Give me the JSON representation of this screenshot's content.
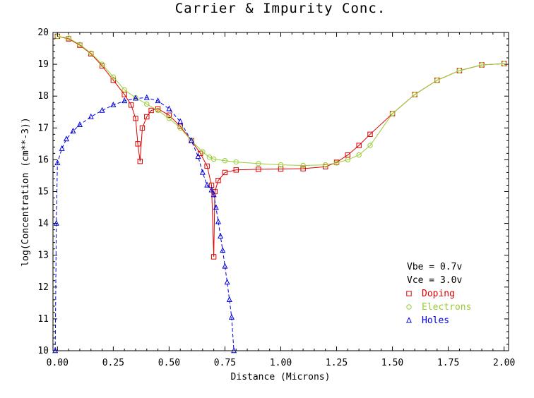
{
  "chart_data": {
    "type": "line",
    "title": "Carrier & Impurity Conc.",
    "xlabel": "Distance (Microns)",
    "ylabel": "log(Concentration (cm**-3))",
    "xlim": [
      -0.02,
      2.02
    ],
    "ylim": [
      10,
      20
    ],
    "x_ticks": [
      "0.00",
      "0.25",
      "0.50",
      "0.75",
      "1.00",
      "1.25",
      "1.50",
      "1.75",
      "2.00"
    ],
    "y_ticks": [
      "10",
      "11",
      "12",
      "13",
      "14",
      "15",
      "16",
      "17",
      "18",
      "19",
      "20"
    ],
    "grid": false,
    "annotations": [
      "Vbe = 0.7v",
      "Vce = 3.0v"
    ],
    "legend_position": "bottom-right",
    "series": [
      {
        "name": "Doping",
        "color": "#dd0000",
        "marker": "square",
        "line": "solid",
        "x": [
          0.0,
          0.05,
          0.1,
          0.15,
          0.2,
          0.25,
          0.3,
          0.33,
          0.35,
          0.36,
          0.37,
          0.38,
          0.4,
          0.42,
          0.45,
          0.5,
          0.55,
          0.6,
          0.64,
          0.67,
          0.69,
          0.7,
          0.705,
          0.72,
          0.75,
          0.8,
          0.9,
          1.0,
          1.1,
          1.2,
          1.25,
          1.3,
          1.35,
          1.4,
          1.5,
          1.6,
          1.7,
          1.8,
          1.9,
          2.0
        ],
        "y": [
          19.88,
          19.8,
          19.6,
          19.33,
          18.95,
          18.5,
          18.05,
          17.72,
          17.3,
          16.5,
          15.95,
          17.0,
          17.35,
          17.55,
          17.6,
          17.4,
          17.05,
          16.6,
          16.2,
          15.8,
          15.2,
          12.95,
          15.0,
          15.35,
          15.6,
          15.68,
          15.7,
          15.71,
          15.72,
          15.78,
          15.92,
          16.15,
          16.45,
          16.8,
          17.45,
          18.05,
          18.5,
          18.8,
          18.98,
          19.02
        ]
      },
      {
        "name": "Electrons",
        "color": "#99cc33",
        "marker": "circle",
        "line": "solid",
        "x": [
          0.0,
          0.05,
          0.1,
          0.15,
          0.2,
          0.25,
          0.3,
          0.35,
          0.4,
          0.45,
          0.5,
          0.55,
          0.6,
          0.65,
          0.68,
          0.7,
          0.75,
          0.8,
          0.9,
          1.0,
          1.1,
          1.2,
          1.25,
          1.3,
          1.35,
          1.4,
          1.5,
          1.6,
          1.7,
          1.8,
          1.9,
          2.0
        ],
        "y": [
          19.88,
          19.82,
          19.62,
          19.35,
          19.0,
          18.6,
          18.2,
          17.95,
          17.75,
          17.55,
          17.3,
          17.0,
          16.6,
          16.25,
          16.08,
          16.02,
          15.97,
          15.93,
          15.88,
          15.84,
          15.82,
          15.84,
          15.9,
          16.0,
          16.15,
          16.45,
          17.45,
          18.05,
          18.5,
          18.8,
          18.98,
          19.02
        ]
      },
      {
        "name": "Holes",
        "color": "#0000dd",
        "marker": "triangle",
        "line": "dashed",
        "x": [
          -0.01,
          -0.005,
          0.0,
          0.02,
          0.04,
          0.07,
          0.1,
          0.15,
          0.2,
          0.25,
          0.3,
          0.35,
          0.4,
          0.45,
          0.5,
          0.55,
          0.6,
          0.63,
          0.65,
          0.67,
          0.69,
          0.7,
          0.71,
          0.72,
          0.73,
          0.74,
          0.75,
          0.76,
          0.77,
          0.78,
          0.79
        ],
        "y": [
          10.0,
          14.0,
          15.9,
          16.35,
          16.65,
          16.9,
          17.1,
          17.35,
          17.55,
          17.72,
          17.85,
          17.93,
          17.95,
          17.85,
          17.6,
          17.2,
          16.6,
          16.1,
          15.6,
          15.2,
          15.05,
          14.9,
          14.5,
          14.05,
          13.6,
          13.15,
          12.65,
          12.15,
          11.6,
          11.05,
          10.0
        ]
      }
    ]
  }
}
